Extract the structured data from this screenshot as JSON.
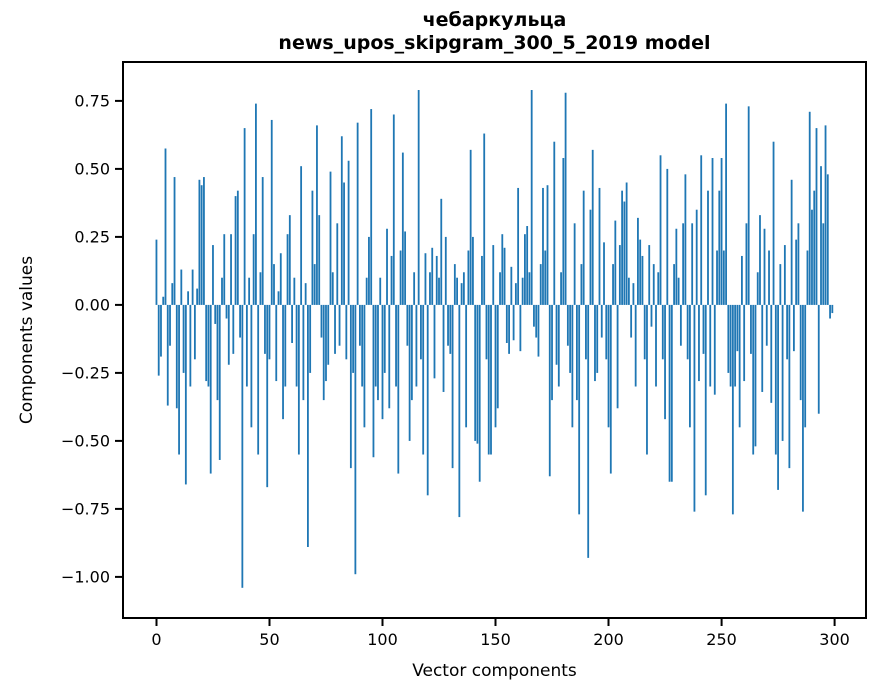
{
  "figure": {
    "title_line1": "чебаркульца",
    "title_line2": "news_upos_skipgram_300_5_2019 model",
    "background": "#ffffff",
    "text_color": "#000000"
  },
  "chart_data": {
    "type": "bar",
    "title": "чебаркульца\nnews_upos_skipgram_300_5_2019 model",
    "xlabel": "Vector components",
    "ylabel": "Components values",
    "bar_color": "#1f77b4",
    "axis_color": "#000000",
    "grid": false,
    "legend": false,
    "xlim": [
      -14.8,
      313.9
    ],
    "ylim": [
      -1.151,
      0.893
    ],
    "xticks": [
      0,
      50,
      100,
      150,
      200,
      250,
      300
    ],
    "yticks": [
      0.75,
      0.5,
      0.25,
      0.0,
      -0.25,
      -0.5,
      -0.75,
      -1.0
    ],
    "bar_width": 0.8,
    "x_start": 0,
    "values": [
      0.24,
      -0.26,
      -0.19,
      0.03,
      0.575,
      -0.37,
      -0.15,
      0.08,
      0.47,
      -0.38,
      -0.55,
      0.13,
      -0.25,
      -0.66,
      0.05,
      -0.3,
      0.13,
      -0.2,
      0.06,
      0.46,
      0.44,
      0.47,
      -0.28,
      -0.3,
      -0.62,
      0.22,
      -0.07,
      -0.35,
      -0.57,
      0.1,
      0.26,
      -0.05,
      -0.22,
      0.26,
      -0.18,
      0.4,
      0.42,
      -0.12,
      -1.04,
      0.65,
      -0.3,
      0.1,
      -0.45,
      0.26,
      0.74,
      -0.55,
      0.12,
      0.47,
      -0.18,
      -0.67,
      -0.2,
      0.68,
      0.15,
      -0.28,
      0.05,
      0.19,
      -0.42,
      -0.3,
      0.26,
      0.33,
      -0.14,
      0.1,
      -0.3,
      -0.55,
      0.51,
      -0.35,
      0.08,
      -0.89,
      -0.25,
      0.42,
      0.15,
      0.66,
      0.33,
      -0.12,
      -0.35,
      -0.28,
      -0.22,
      0.49,
      0.12,
      -0.18,
      0.3,
      -0.15,
      0.62,
      0.45,
      -0.2,
      0.53,
      -0.6,
      -0.25,
      -0.99,
      0.67,
      -0.15,
      -0.3,
      -0.45,
      0.1,
      0.25,
      0.72,
      -0.56,
      -0.3,
      -0.35,
      0.1,
      -0.42,
      -0.25,
      0.28,
      -0.38,
      0.18,
      0.7,
      -0.3,
      -0.62,
      0.2,
      0.56,
      0.27,
      -0.15,
      -0.5,
      -0.35,
      0.12,
      -0.3,
      0.79,
      -0.2,
      -0.55,
      0.19,
      -0.7,
      0.12,
      0.21,
      -0.27,
      0.18,
      0.1,
      0.39,
      -0.32,
      0.25,
      -0.15,
      -0.18,
      -0.6,
      0.15,
      0.1,
      -0.78,
      0.08,
      0.12,
      -0.45,
      0.2,
      0.57,
      0.25,
      -0.5,
      -0.51,
      -0.65,
      0.18,
      0.63,
      -0.2,
      -0.55,
      -0.55,
      0.22,
      -0.45,
      -0.38,
      0.12,
      0.26,
      0.21,
      -0.14,
      -0.18,
      0.14,
      -0.13,
      0.08,
      0.43,
      -0.17,
      0.1,
      0.26,
      0.29,
      0.12,
      0.79,
      -0.08,
      -0.12,
      -0.19,
      0.15,
      0.43,
      0.2,
      0.44,
      -0.63,
      -0.35,
      0.6,
      -0.22,
      -0.3,
      0.12,
      0.54,
      0.78,
      -0.15,
      -0.25,
      -0.45,
      0.3,
      -0.35,
      -0.77,
      0.15,
      0.42,
      -0.2,
      -0.93,
      0.35,
      0.57,
      -0.28,
      -0.25,
      0.43,
      -0.12,
      0.23,
      -0.2,
      -0.45,
      -0.62,
      0.15,
      0.31,
      -0.38,
      0.22,
      0.42,
      0.38,
      0.45,
      0.1,
      -0.12,
      0.08,
      -0.3,
      0.32,
      0.24,
      0.18,
      -0.2,
      -0.55,
      0.22,
      -0.08,
      0.15,
      -0.3,
      0.12,
      0.55,
      -0.2,
      -0.42,
      0.5,
      -0.65,
      -0.65,
      0.15,
      0.28,
      0.1,
      -0.15,
      0.3,
      0.48,
      -0.2,
      -0.45,
      0.3,
      -0.76,
      0.35,
      -0.28,
      0.55,
      -0.18,
      -0.7,
      0.42,
      -0.3,
      0.54,
      -0.33,
      0.2,
      0.42,
      0.54,
      0.2,
      0.74,
      -0.25,
      -0.3,
      -0.77,
      -0.3,
      -0.17,
      -0.45,
      0.18,
      -0.28,
      0.3,
      0.73,
      -0.18,
      -0.55,
      -0.52,
      0.12,
      0.33,
      -0.32,
      0.28,
      -0.15,
      0.2,
      -0.36,
      0.6,
      -0.55,
      -0.68,
      0.15,
      -0.5,
      0.22,
      -0.2,
      -0.6,
      0.46,
      -0.17,
      0.24,
      0.3,
      -0.35,
      -0.76,
      -0.45,
      0.2,
      0.71,
      0.35,
      0.42,
      0.65,
      -0.4,
      0.51,
      0.3,
      0.66,
      0.48,
      -0.05,
      -0.03
    ]
  }
}
